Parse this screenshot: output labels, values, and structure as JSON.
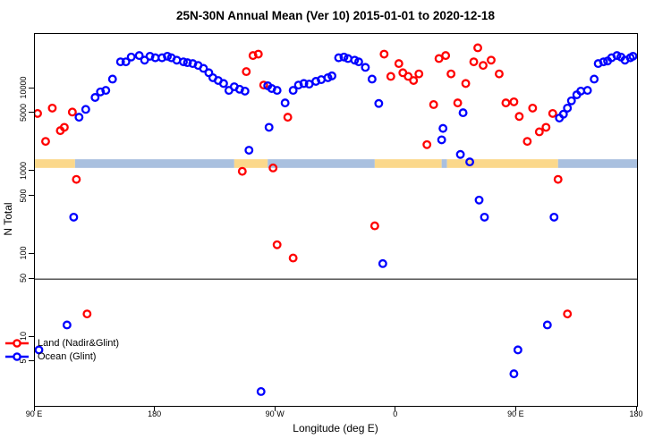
{
  "title": "25N-30N Annual Mean (Ver 10)   2015-01-01 to 2020-12-18",
  "legend": {
    "items": [
      {
        "label": "Land (Nadir&Glint)",
        "color": "#FF0000"
      },
      {
        "label": "Ocean (Glint)",
        "color": "#0000FF"
      }
    ]
  },
  "chart_data": {
    "type": "scatter",
    "title": "25N-30N Annual Mean (Ver 10)   2015-01-01 to 2020-12-18",
    "xlabel": "Longitude (deg E)",
    "ylabel": "N Total",
    "x_axis": {
      "range": [
        90,
        540
      ],
      "note": "longitude axis wraps eastward: 90E to 180 to 90W to 0 to 90E to 180",
      "ticks": [
        {
          "value": 90,
          "label": "90 E"
        },
        {
          "value": 180,
          "label": "180"
        },
        {
          "value": 270,
          "label": "90 W"
        },
        {
          "value": 360,
          "label": "0"
        },
        {
          "value": 450,
          "label": "90 E"
        },
        {
          "value": 540,
          "label": "180"
        }
      ]
    },
    "y_axis": {
      "scale": "log",
      "range": [
        1.5,
        45000
      ],
      "ticks": [
        5,
        10,
        50,
        100,
        500,
        1000,
        5000,
        10000
      ]
    },
    "reference_line": {
      "y": 50,
      "color": "#555555"
    },
    "land_ocean_band": {
      "value_range": [
        1100,
        1400
      ],
      "land_color": "#FBD88B",
      "ocean_color": "#A9C0DF",
      "segments": [
        {
          "from": 90,
          "to": 120,
          "type": "land"
        },
        {
          "from": 120,
          "to": 239,
          "type": "ocean"
        },
        {
          "from": 239,
          "to": 264,
          "type": "land"
        },
        {
          "from": 264,
          "to": 344,
          "type": "ocean"
        },
        {
          "from": 344,
          "to": 394,
          "type": "land"
        },
        {
          "from": 394,
          "to": 398,
          "type": "ocean"
        },
        {
          "from": 398,
          "to": 481,
          "type": "land"
        },
        {
          "from": 481,
          "to": 540,
          "type": "ocean"
        }
      ]
    },
    "series": [
      {
        "name": "Land (Nadir&Glint)",
        "color": "#FF0000",
        "points": [
          [
            92,
            5000
          ],
          [
            98,
            2300
          ],
          [
            103,
            5800
          ],
          [
            109,
            3100
          ],
          [
            112,
            3400
          ],
          [
            118,
            5200
          ],
          [
            121,
            800
          ],
          [
            129,
            19
          ],
          [
            245,
            1000
          ],
          [
            248,
            16000
          ],
          [
            253,
            25000
          ],
          [
            257,
            26000
          ],
          [
            261,
            11000
          ],
          [
            268,
            1100
          ],
          [
            271,
            130
          ],
          [
            279,
            4500
          ],
          [
            283,
            90
          ],
          [
            344,
            220
          ],
          [
            351,
            26000
          ],
          [
            356,
            14000
          ],
          [
            362,
            20000
          ],
          [
            365,
            15500
          ],
          [
            369,
            14000
          ],
          [
            373,
            12500
          ],
          [
            377,
            15000
          ],
          [
            383,
            2100
          ],
          [
            388,
            6400
          ],
          [
            392,
            23000
          ],
          [
            397,
            25000
          ],
          [
            401,
            15000
          ],
          [
            406,
            6700
          ],
          [
            412,
            11500
          ],
          [
            418,
            21000
          ],
          [
            421,
            31000
          ],
          [
            425,
            19000
          ],
          [
            431,
            22000
          ],
          [
            437,
            15000
          ],
          [
            442,
            6700
          ],
          [
            448,
            6900
          ],
          [
            452,
            4600
          ],
          [
            458,
            2300
          ],
          [
            462,
            5800
          ],
          [
            467,
            3000
          ],
          [
            472,
            3400
          ],
          [
            477,
            5000
          ],
          [
            481,
            800
          ],
          [
            488,
            19
          ]
        ]
      },
      {
        "name": "Ocean (Glint)",
        "color": "#0000FF",
        "points": [
          [
            93,
            7
          ],
          [
            114,
            14
          ],
          [
            119,
            280
          ],
          [
            123,
            4500
          ],
          [
            128,
            5600
          ],
          [
            135,
            7800
          ],
          [
            139,
            9100
          ],
          [
            143,
            9500
          ],
          [
            148,
            13000
          ],
          [
            154,
            21000
          ],
          [
            158,
            21000
          ],
          [
            162,
            24000
          ],
          [
            168,
            25000
          ],
          [
            172,
            22000
          ],
          [
            176,
            24500
          ],
          [
            180,
            23500
          ],
          [
            185,
            23500
          ],
          [
            189,
            24500
          ],
          [
            192,
            23500
          ],
          [
            196,
            22000
          ],
          [
            201,
            21000
          ],
          [
            204,
            20500
          ],
          [
            208,
            20000
          ],
          [
            212,
            19000
          ],
          [
            216,
            17500
          ],
          [
            220,
            15500
          ],
          [
            223,
            13500
          ],
          [
            227,
            12500
          ],
          [
            231,
            11500
          ],
          [
            235,
            9500
          ],
          [
            239,
            10500
          ],
          [
            243,
            9800
          ],
          [
            247,
            9300
          ],
          [
            250,
            1800
          ],
          [
            259,
            2.2
          ],
          [
            264,
            10800
          ],
          [
            265,
            3400
          ],
          [
            267,
            10000
          ],
          [
            271,
            9500
          ],
          [
            277,
            6700
          ],
          [
            283,
            9500
          ],
          [
            287,
            11000
          ],
          [
            291,
            11500
          ],
          [
            295,
            11300
          ],
          [
            300,
            12200
          ],
          [
            304,
            12800
          ],
          [
            309,
            13500
          ],
          [
            312,
            14200
          ],
          [
            317,
            23500
          ],
          [
            321,
            24000
          ],
          [
            324,
            23000
          ],
          [
            329,
            22000
          ],
          [
            332,
            21000
          ],
          [
            337,
            18000
          ],
          [
            342,
            13000
          ],
          [
            347,
            6600
          ],
          [
            350,
            77
          ],
          [
            394,
            2400
          ],
          [
            395,
            3300
          ],
          [
            408,
            1600
          ],
          [
            410,
            5100
          ],
          [
            415,
            1300
          ],
          [
            422,
            450
          ],
          [
            426,
            280
          ],
          [
            448,
            3.6
          ],
          [
            451,
            7
          ],
          [
            473,
            14
          ],
          [
            478,
            280
          ],
          [
            482,
            4400
          ],
          [
            485,
            4900
          ],
          [
            488,
            5800
          ],
          [
            491,
            7100
          ],
          [
            495,
            8400
          ],
          [
            498,
            9300
          ],
          [
            503,
            9500
          ],
          [
            508,
            13000
          ],
          [
            511,
            20000
          ],
          [
            515,
            21000
          ],
          [
            518,
            21500
          ],
          [
            521,
            23500
          ],
          [
            525,
            25000
          ],
          [
            528,
            24000
          ],
          [
            531,
            22000
          ],
          [
            535,
            23500
          ],
          [
            537,
            24500
          ]
        ]
      }
    ]
  }
}
